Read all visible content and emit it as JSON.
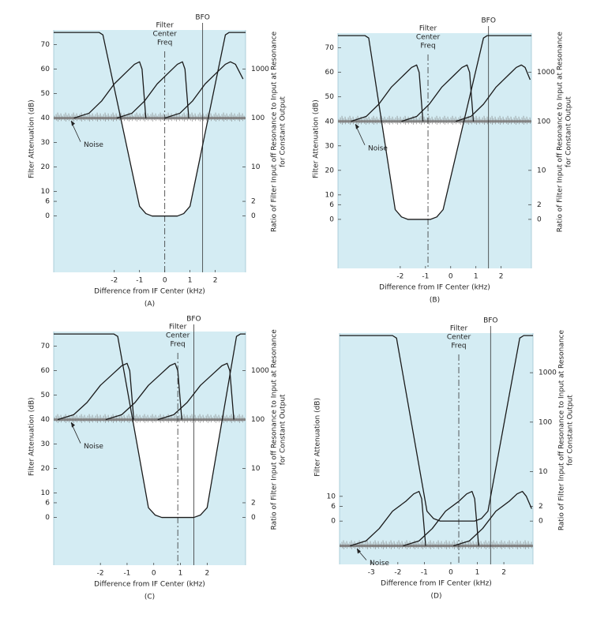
{
  "chart_data": [
    {
      "type": "line",
      "caption": "(A)",
      "xlabel": "Difference from IF Center (kHz)",
      "ylabel": "Filter Attenuation (dB)",
      "y2label": [
        "Ratio of Filter Input off Resonance to Input at Resonance",
        "for Constant Output"
      ],
      "xlim": [
        -4.4,
        3.2
      ],
      "ylim": [
        -23,
        76
      ],
      "xticks": [
        -2,
        -1,
        0,
        1,
        2
      ],
      "yticks": [
        0,
        6,
        10,
        20,
        30,
        40,
        50,
        60,
        70
      ],
      "y2lim": [
        -23,
        76
      ],
      "y2ticks": [
        0,
        {
          "value": 6,
          "label": "2"
        },
        {
          "value": 20,
          "label": "10"
        },
        {
          "value": 40,
          "label": "100"
        },
        {
          "value": 60,
          "label": "1000"
        }
      ],
      "plot_color": "#d4ecf3",
      "noise_level": 40,
      "noise_label": "Noise",
      "markers": [
        {
          "label_lines": [
            "Filter",
            "Center",
            "Freq"
          ],
          "x": 0,
          "style": "dashdot"
        },
        {
          "label_lines": [
            "BFO"
          ],
          "x": 1.5,
          "style": "solid"
        }
      ],
      "series": [
        {
          "color": "#1a1a1a",
          "x": [
            -4.4,
            -2.6,
            -2.45,
            -1.0,
            -0.75,
            -0.5,
            0.5,
            0.75,
            1.0,
            2.4,
            2.55,
            3.2
          ],
          "values": [
            75,
            75,
            74,
            4,
            1,
            0,
            0,
            1,
            4,
            74,
            75,
            75
          ]
        },
        {
          "color": "#1a1a1a",
          "x": [
            -3.6,
            -3.0,
            -2.5,
            -2.0,
            -1.5,
            -1.2,
            -1.0,
            -0.9,
            -0.75
          ],
          "values": [
            40,
            42,
            47,
            54,
            59,
            62,
            63,
            60,
            40
          ]
        },
        {
          "color": "#1a1a1a",
          "x": [
            -1.9,
            -1.3,
            -0.8,
            -0.3,
            0.2,
            0.5,
            0.7,
            0.8,
            0.95
          ],
          "values": [
            40,
            42,
            47,
            54,
            59,
            62,
            63,
            60,
            40
          ]
        },
        {
          "color": "#1a1a1a",
          "x": [
            0.0,
            0.6,
            1.1,
            1.6,
            2.1,
            2.4,
            2.6,
            2.8,
            3.1
          ],
          "values": [
            40,
            42,
            47,
            54,
            59,
            62,
            63,
            62,
            56
          ]
        }
      ]
    },
    {
      "type": "line",
      "caption": "(B)",
      "xlabel": "Difference from IF Center (kHz)",
      "ylabel": "Filter Attenuation (dB)",
      "y2label": [
        "Ratio of Filter Input off Resonance to Input at Resonance",
        "for Constant Output"
      ],
      "xlim": [
        -4.47,
        3.2
      ],
      "ylim": [
        -20,
        76
      ],
      "xticks": [
        -2,
        -1,
        0,
        1,
        2
      ],
      "yticks": [
        0,
        6,
        10,
        20,
        30,
        40,
        50,
        60,
        70
      ],
      "y2lim": [
        -20,
        76
      ],
      "y2ticks": [
        0,
        {
          "value": 6,
          "label": "2"
        },
        {
          "value": 20,
          "label": "10"
        },
        {
          "value": 40,
          "label": "100"
        },
        {
          "value": 60,
          "label": "1000"
        }
      ],
      "plot_color": "#d4ecf3",
      "noise_level": 40,
      "noise_label": "Noise",
      "markers": [
        {
          "label_lines": [
            "Filter",
            "Center",
            "Freq"
          ],
          "x": -0.9,
          "style": "dashdot"
        },
        {
          "label_lines": [
            "BFO"
          ],
          "x": 1.5,
          "style": "solid"
        }
      ],
      "series": [
        {
          "color": "#1a1a1a",
          "x": [
            -4.47,
            -3.4,
            -3.25,
            -2.2,
            -1.95,
            -1.7,
            -0.8,
            -0.55,
            -0.3,
            1.3,
            1.45,
            3.2
          ],
          "values": [
            75,
            75,
            74,
            4,
            1,
            0,
            0,
            1,
            4,
            74,
            75,
            75
          ]
        },
        {
          "color": "#1a1a1a",
          "x": [
            -3.95,
            -3.35,
            -2.85,
            -2.35,
            -1.85,
            -1.55,
            -1.35,
            -1.25,
            -1.1
          ],
          "values": [
            40,
            42,
            47,
            54,
            59,
            62,
            63,
            60,
            40
          ]
        },
        {
          "color": "#1a1a1a",
          "x": [
            -1.95,
            -1.35,
            -0.85,
            -0.35,
            0.15,
            0.45,
            0.65,
            0.75,
            0.9
          ],
          "values": [
            40,
            42,
            47,
            54,
            59,
            62,
            63,
            60,
            40
          ]
        },
        {
          "color": "#1a1a1a",
          "x": [
            0.2,
            0.8,
            1.3,
            1.8,
            2.3,
            2.6,
            2.8,
            2.95,
            3.15
          ],
          "values": [
            40,
            42,
            47,
            54,
            59,
            62,
            63,
            62,
            57
          ]
        }
      ]
    },
    {
      "type": "line",
      "caption": "(C)",
      "xlabel": "Difference from IF Center (kHz)",
      "ylabel": "Filter Attenuation (dB)",
      "y2label": [
        "Ratio of Filter Input off Resonance to Input at Resonance",
        "for Constant Output"
      ],
      "xlim": [
        -3.75,
        3.44
      ],
      "ylim": [
        -19.5,
        76
      ],
      "xticks": [
        -2,
        -1,
        0,
        1,
        2
      ],
      "yticks": [
        0,
        6,
        10,
        20,
        30,
        40,
        50,
        60,
        70
      ],
      "y2lim": [
        -19.5,
        76
      ],
      "y2ticks": [
        0,
        {
          "value": 6,
          "label": "2"
        },
        {
          "value": 20,
          "label": "10"
        },
        {
          "value": 40,
          "label": "100"
        },
        {
          "value": 60,
          "label": "1000"
        }
      ],
      "plot_color": "#d4ecf3",
      "noise_level": 40,
      "noise_label": "Noise",
      "markers": [
        {
          "label_lines": [
            "Filter",
            "Center",
            "Freq"
          ],
          "x": 0.9,
          "style": "dashdot"
        },
        {
          "label_lines": [
            "BFO"
          ],
          "x": 1.5,
          "style": "solid"
        }
      ],
      "series": [
        {
          "color": "#1a1a1a",
          "x": [
            -3.75,
            -1.5,
            -1.35,
            -0.2,
            0.05,
            0.3,
            1.5,
            1.75,
            2.0,
            3.1,
            3.25,
            3.44
          ],
          "values": [
            75,
            75,
            74,
            4,
            1,
            0,
            0,
            1,
            4,
            74,
            75,
            75
          ]
        },
        {
          "color": "#1a1a1a",
          "x": [
            -3.6,
            -3.0,
            -2.5,
            -2.0,
            -1.5,
            -1.2,
            -1.0,
            -0.9,
            -0.75
          ],
          "values": [
            40,
            42,
            47,
            54,
            59,
            62,
            63,
            60,
            40
          ]
        },
        {
          "color": "#1a1a1a",
          "x": [
            -1.8,
            -1.2,
            -0.7,
            -0.2,
            0.3,
            0.6,
            0.8,
            0.9,
            1.05
          ],
          "values": [
            40,
            42,
            47,
            54,
            59,
            62,
            63,
            60,
            40
          ]
        },
        {
          "color": "#1a1a1a",
          "x": [
            0.15,
            0.75,
            1.25,
            1.75,
            2.25,
            2.55,
            2.75,
            2.85,
            3.0
          ],
          "values": [
            40,
            42,
            47,
            54,
            59,
            62,
            63,
            60,
            40
          ]
        }
      ]
    },
    {
      "type": "line",
      "caption": "(D)",
      "xlabel": "Difference from IF Center (kHz)",
      "ylabel": "Filter Attenuation (dB)",
      "y2label": [
        "Ratio of Filter Input off Resonance to Input at Resonance",
        "for Constant Output"
      ],
      "xlim": [
        -4.2,
        3.1
      ],
      "ylim": [
        -17.5,
        76
      ],
      "xticks": [
        -3,
        -2,
        -1,
        0,
        1,
        2
      ],
      "yticks": [
        0,
        6,
        10
      ],
      "y2lim": [
        -17.5,
        76
      ],
      "y2ticks": [
        0,
        {
          "value": 6,
          "label": "2"
        },
        {
          "value": 20,
          "label": "10"
        },
        {
          "value": 40,
          "label": "100"
        },
        {
          "value": 60,
          "label": "1000"
        }
      ],
      "plot_color": "#d4ecf3",
      "noise_level": -10,
      "noise_label": "Noise",
      "markers": [
        {
          "label_lines": [
            "Filter",
            "Center",
            "Freq"
          ],
          "x": 0.3,
          "style": "dashdot"
        },
        {
          "label_lines": [
            "BFO"
          ],
          "x": 1.5,
          "style": "solid"
        }
      ],
      "series": [
        {
          "color": "#1a1a1a",
          "x": [
            -4.2,
            -2.2,
            -2.05,
            -0.9,
            -0.65,
            -0.4,
            0.9,
            1.15,
            1.4,
            2.6,
            2.75,
            3.1
          ],
          "values": [
            75,
            75,
            74,
            4,
            1,
            0,
            0,
            1,
            4,
            74,
            75,
            75
          ]
        },
        {
          "color": "#1a1a1a",
          "x": [
            -3.8,
            -3.2,
            -2.7,
            -2.2,
            -1.7,
            -1.4,
            -1.2,
            -1.1,
            -0.95
          ],
          "values": [
            -10,
            -8,
            -3,
            4,
            8,
            11,
            12,
            9,
            -10
          ]
        },
        {
          "color": "#1a1a1a",
          "x": [
            -1.8,
            -1.2,
            -0.7,
            -0.2,
            0.3,
            0.6,
            0.8,
            0.9,
            1.05
          ],
          "values": [
            -10,
            -8,
            -3,
            4,
            8,
            11,
            12,
            9,
            -10
          ]
        },
        {
          "color": "#1a1a1a",
          "x": [
            0.1,
            0.7,
            1.2,
            1.7,
            2.2,
            2.5,
            2.7,
            2.85,
            3.05
          ],
          "values": [
            -10,
            -8,
            -3,
            4,
            8,
            11,
            12,
            10,
            5
          ]
        }
      ]
    }
  ]
}
